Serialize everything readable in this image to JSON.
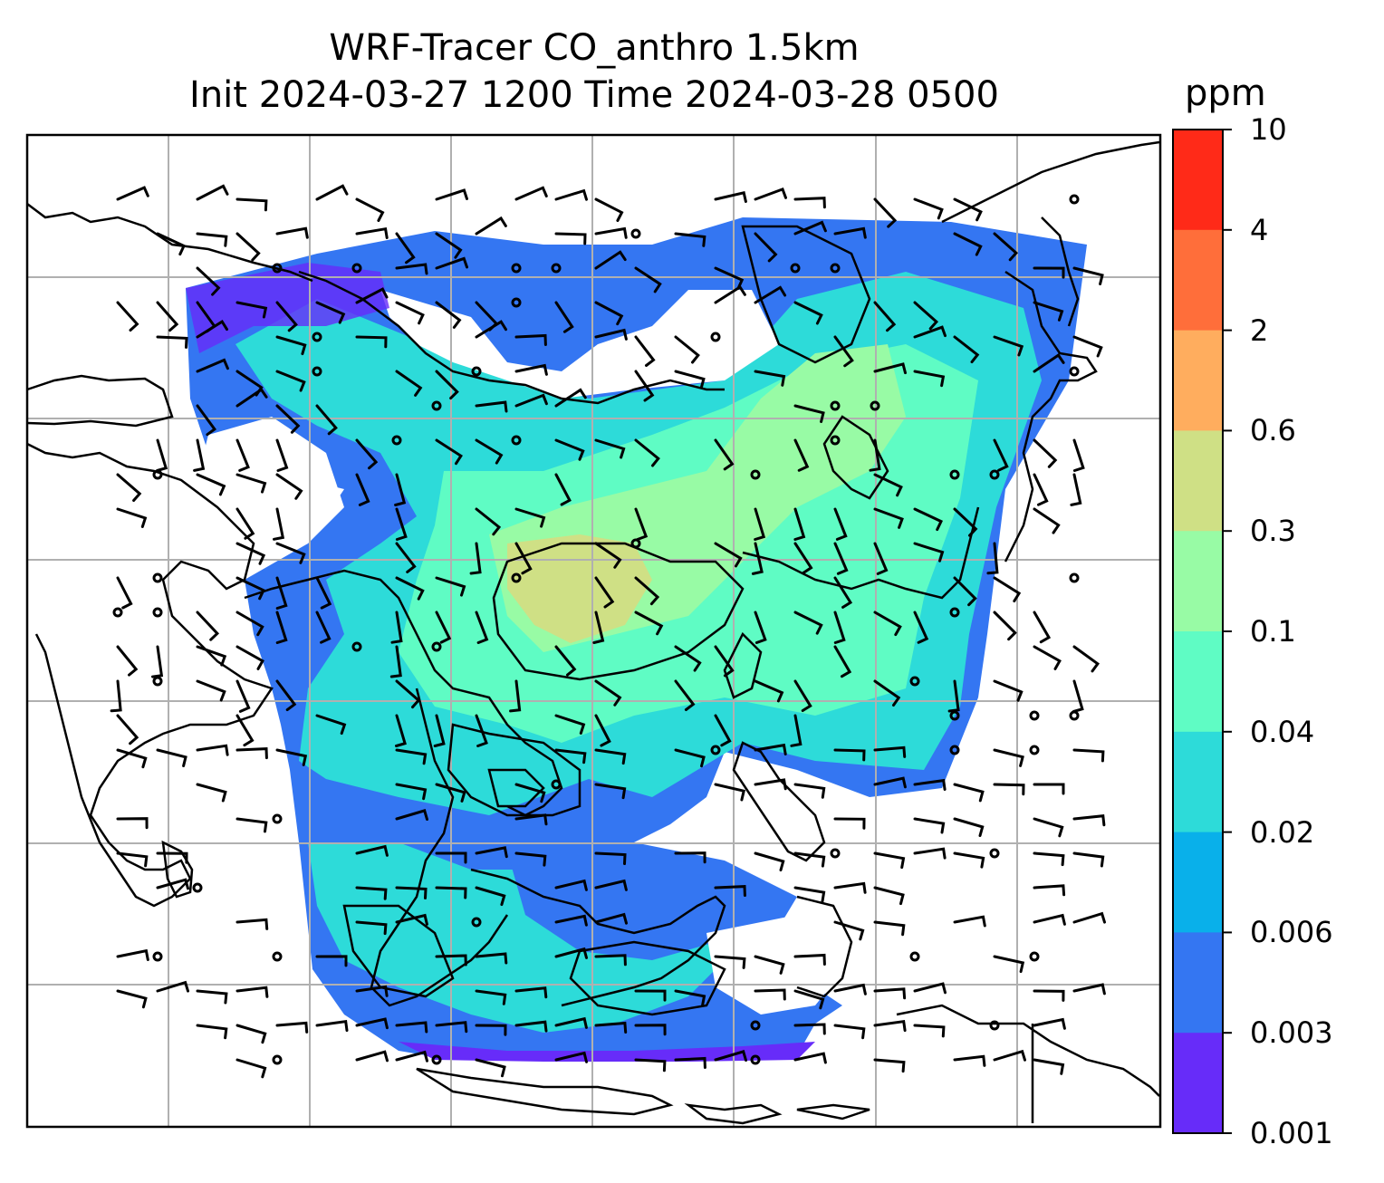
{
  "title": {
    "line1": "WRF-Tracer CO_anthro 1.5km",
    "line2": "Init 2024-03-27 1200 Time 2024-03-28 0500"
  },
  "colorbar": {
    "unit": "ppm",
    "tick_labels": [
      "10",
      "4",
      "2",
      "0.6",
      "0.3",
      "0.1",
      "0.04",
      "0.02",
      "0.006",
      "0.003",
      "0.001"
    ],
    "colors_top_to_bottom": [
      "#ff2a18",
      "#ff6e3a",
      "#ffad5e",
      "#cfe085",
      "#98fba5",
      "#5ffcc4",
      "#2ddbd9",
      "#09b0ea",
      "#3476f2",
      "#672cf9"
    ]
  },
  "map": {
    "features": [
      "coastlines",
      "gridlines",
      "wind-barbs",
      "tracer-contours"
    ],
    "field": "CO_anthro",
    "level": "1.5km",
    "gridline_color": "#b0b0b0"
  }
}
